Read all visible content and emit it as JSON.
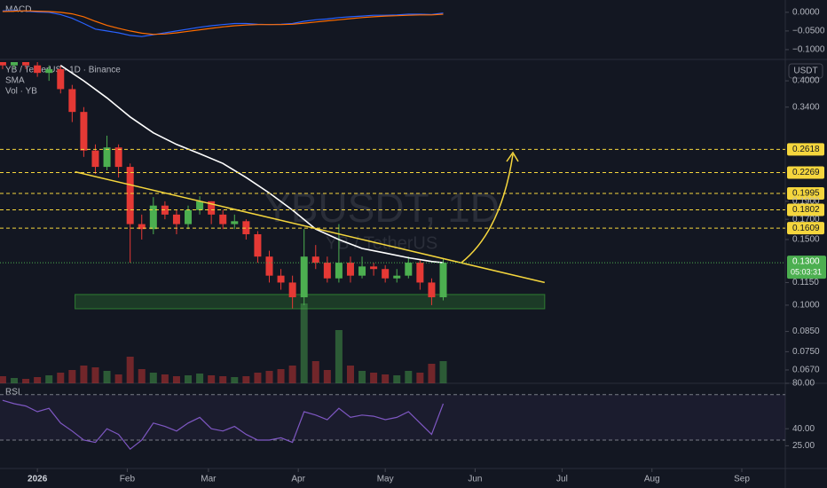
{
  "chart_data": [
    {
      "type": "line",
      "title": "MACD",
      "x": [
        -12,
        -8,
        -4,
        0,
        4,
        8,
        12,
        16,
        20,
        24,
        28,
        32,
        36,
        40,
        44,
        48,
        52,
        56,
        60,
        64,
        68,
        72,
        76,
        80,
        84,
        88,
        92,
        96,
        100,
        104,
        108,
        112,
        116,
        120,
        124,
        128,
        132,
        136,
        140
      ],
      "series": [
        {
          "color": "#2962ff",
          "values": [
            0.004,
            0.005,
            0.003,
            0.001,
            0.0,
            -0.006,
            -0.016,
            -0.03,
            -0.045,
            -0.05,
            -0.055,
            -0.062,
            -0.065,
            -0.06,
            -0.055,
            -0.05,
            -0.045,
            -0.04,
            -0.036,
            -0.033,
            -0.03,
            -0.03,
            -0.032,
            -0.033,
            -0.032,
            -0.03,
            -0.024,
            -0.02,
            -0.018,
            -0.014,
            -0.012,
            -0.01,
            -0.008,
            -0.008,
            -0.007,
            -0.005,
            -0.005,
            -0.006,
            -0.002
          ]
        },
        {
          "color": "#ff6d00",
          "values": [
            0.002,
            0.003,
            0.004,
            0.003,
            0.002,
            0.0,
            -0.004,
            -0.012,
            -0.024,
            -0.035,
            -0.043,
            -0.05,
            -0.056,
            -0.059,
            -0.058,
            -0.055,
            -0.051,
            -0.047,
            -0.043,
            -0.039,
            -0.036,
            -0.034,
            -0.033,
            -0.033,
            -0.033,
            -0.032,
            -0.029,
            -0.026,
            -0.023,
            -0.02,
            -0.017,
            -0.014,
            -0.012,
            -0.01,
            -0.009,
            -0.008,
            -0.007,
            -0.007,
            -0.005
          ]
        }
      ],
      "ylim": [
        -0.124,
        0.033
      ],
      "yticks": [
        {
          "value": 0,
          "label": "0.0000"
        },
        {
          "value": -0.05,
          "label": "−0.0500"
        },
        {
          "value": -0.1,
          "label": "−0.1000"
        }
      ]
    },
    {
      "type": "candlestick",
      "title": "YB / TetherUS · 1D · Binance",
      "legend": [
        "SMA",
        "Vol · YB"
      ],
      "watermark": "YBUSDT, 1D",
      "watermark_subtitle": "YB / TetherUS",
      "currency": "USDT",
      "x": [
        -12,
        -8,
        -4,
        0,
        4,
        8,
        12,
        16,
        20,
        24,
        28,
        32,
        36,
        40,
        44,
        48,
        52,
        56,
        60,
        64,
        68,
        72,
        76,
        80,
        84,
        88,
        92,
        96,
        100,
        104,
        108,
        112,
        116,
        120,
        124,
        128,
        132,
        136,
        140
      ],
      "open": [
        0.45,
        0.44,
        0.45,
        0.44,
        0.42,
        0.43,
        0.38,
        0.33,
        0.26,
        0.235,
        0.265,
        0.235,
        0.165,
        0.16,
        0.185,
        0.175,
        0.165,
        0.18,
        0.19,
        0.175,
        0.165,
        0.168,
        0.155,
        0.135,
        0.12,
        0.115,
        0.105,
        0.135,
        0.13,
        0.118,
        0.13,
        0.12,
        0.127,
        0.125,
        0.118,
        0.12,
        0.13,
        0.115,
        0.105
      ],
      "high": [
        0.47,
        0.46,
        0.46,
        0.45,
        0.44,
        0.44,
        0.39,
        0.34,
        0.27,
        0.285,
        0.27,
        0.24,
        0.175,
        0.195,
        0.19,
        0.18,
        0.185,
        0.196,
        0.19,
        0.18,
        0.175,
        0.17,
        0.158,
        0.14,
        0.125,
        0.12,
        0.16,
        0.145,
        0.135,
        0.165,
        0.135,
        0.135,
        0.13,
        0.128,
        0.125,
        0.135,
        0.132,
        0.118,
        0.133
      ],
      "low": [
        0.43,
        0.43,
        0.43,
        0.41,
        0.4,
        0.37,
        0.31,
        0.25,
        0.225,
        0.23,
        0.22,
        0.13,
        0.15,
        0.155,
        0.17,
        0.155,
        0.16,
        0.175,
        0.165,
        0.16,
        0.16,
        0.15,
        0.13,
        0.115,
        0.11,
        0.098,
        0.1,
        0.125,
        0.115,
        0.115,
        0.115,
        0.118,
        0.12,
        0.115,
        0.115,
        0.118,
        0.11,
        0.1,
        0.103
      ],
      "close": [
        0.44,
        0.45,
        0.44,
        0.42,
        0.43,
        0.38,
        0.33,
        0.26,
        0.235,
        0.265,
        0.235,
        0.165,
        0.16,
        0.185,
        0.175,
        0.165,
        0.18,
        0.19,
        0.175,
        0.165,
        0.168,
        0.155,
        0.135,
        0.12,
        0.115,
        0.105,
        0.135,
        0.13,
        0.118,
        0.13,
        0.12,
        0.127,
        0.125,
        0.118,
        0.12,
        0.13,
        0.115,
        0.105,
        0.13
      ],
      "volume": [
        8,
        6,
        5,
        7,
        9,
        12,
        15,
        20,
        18,
        14,
        10,
        30,
        16,
        12,
        10,
        8,
        9,
        11,
        9,
        8,
        7,
        8,
        12,
        14,
        16,
        20,
        90,
        25,
        15,
        60,
        20,
        14,
        12,
        10,
        9,
        14,
        12,
        22,
        25
      ],
      "up_color": "#4caf50",
      "down_color": "#e53935",
      "sma": {
        "color": "#ffffff",
        "x": [
          8,
          16,
          24,
          32,
          40,
          48,
          56,
          64,
          72,
          80,
          88,
          96,
          104,
          112,
          120,
          128,
          136,
          140
        ],
        "values": [
          0.44,
          0.4,
          0.36,
          0.32,
          0.29,
          0.27,
          0.255,
          0.24,
          0.22,
          0.2,
          0.18,
          0.16,
          0.15,
          0.142,
          0.138,
          0.134,
          0.131,
          0.13
        ]
      },
      "trendline": {
        "color": "#f5d63d",
        "x": [
          13,
          175
        ],
        "values": [
          0.228,
          0.115
        ]
      },
      "zone": {
        "color": "#2e7d32",
        "x": [
          13,
          175
        ],
        "range": [
          0.0978,
          0.1068
        ]
      },
      "levels": [
        {
          "value": 0.2618,
          "label": "0.2618"
        },
        {
          "value": 0.2269,
          "label": "0.2269"
        },
        {
          "value": 0.1995,
          "label": "0.1995"
        },
        {
          "value": 0.1802,
          "label": "0.1802"
        },
        {
          "value": 0.1609,
          "label": "0.1609"
        }
      ],
      "last_price": {
        "value": 0.13,
        "label": "0.1300"
      },
      "countdown": "05:03:31",
      "log_scale": true,
      "grid": false,
      "ylim": [
        0.0617,
        0.449
      ],
      "yticks": [
        {
          "value": 0.4,
          "label": "0.4000"
        },
        {
          "value": 0.34,
          "label": "0.3400"
        },
        {
          "value": 0.19,
          "label": "0.1900"
        },
        {
          "value": 0.17,
          "label": "0.1700"
        },
        {
          "value": 0.15,
          "label": "0.1500"
        },
        {
          "value": 0.115,
          "label": "0.1150"
        },
        {
          "value": 0.1,
          "label": "0.1000"
        },
        {
          "value": 0.085,
          "label": "0.0850"
        },
        {
          "value": 0.075,
          "label": "0.0750"
        },
        {
          "value": 0.067,
          "label": "0.0670"
        }
      ],
      "xlim": [
        -12.9,
        258
      ],
      "xticks": [
        {
          "value": 0,
          "label": "2026"
        },
        {
          "value": 31,
          "label": "Feb"
        },
        {
          "value": 59,
          "label": "Mar"
        },
        {
          "value": 90,
          "label": "Apr"
        },
        {
          "value": 120,
          "label": "May"
        },
        {
          "value": 151,
          "label": "Jun"
        },
        {
          "value": 181,
          "label": "Jul"
        },
        {
          "value": 212,
          "label": "Aug"
        },
        {
          "value": 243,
          "label": "Sep"
        }
      ]
    },
    {
      "type": "line",
      "title": "RSI",
      "color": "#7e57c2",
      "band": [
        30,
        70
      ],
      "x": [
        -12,
        -8,
        -4,
        0,
        4,
        8,
        12,
        16,
        20,
        24,
        28,
        32,
        36,
        40,
        44,
        48,
        52,
        56,
        60,
        64,
        68,
        72,
        76,
        80,
        84,
        88,
        92,
        96,
        100,
        104,
        108,
        112,
        116,
        120,
        124,
        128,
        132,
        136,
        140
      ],
      "values": [
        65,
        62,
        60,
        55,
        58,
        45,
        38,
        30,
        28,
        40,
        35,
        22,
        30,
        45,
        42,
        38,
        45,
        50,
        40,
        38,
        42,
        35,
        30,
        30,
        32,
        28,
        55,
        52,
        48,
        58,
        50,
        52,
        51,
        48,
        50,
        55,
        45,
        35,
        62
      ],
      "ylim": [
        5,
        80
      ],
      "yticks": [
        {
          "value": 80,
          "label": "80.00"
        },
        {
          "value": 40,
          "label": "40.00"
        },
        {
          "value": 25,
          "label": "25.00"
        }
      ]
    }
  ]
}
